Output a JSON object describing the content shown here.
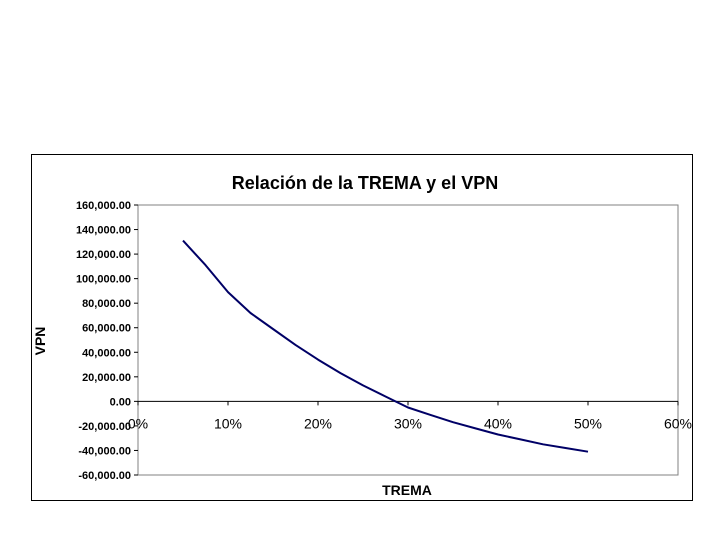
{
  "chart_data": {
    "type": "line",
    "title": "Relación de la TREMA y el VPN",
    "xlabel": "TREMA",
    "ylabel": "VPN",
    "xlim": [
      0,
      0.6
    ],
    "ylim": [
      -60000,
      160000
    ],
    "x_ticks": [
      "0%",
      "10%",
      "20%",
      "30%",
      "40%",
      "50%",
      "60%"
    ],
    "y_ticks": [
      "160,000.00",
      "140,000.00",
      "120,000.00",
      "100,000.00",
      "80,000.00",
      "60,000.00",
      "40,000.00",
      "20,000.00",
      "0.00",
      "-20,000.00",
      "-40,000.00",
      "-60,000.00"
    ],
    "grid": false,
    "legend": "none",
    "series": [
      {
        "color": "#000066",
        "x": [
          0.05,
          0.075,
          0.1,
          0.125,
          0.15,
          0.175,
          0.2,
          0.225,
          0.25,
          0.275,
          0.3,
          0.325,
          0.35,
          0.375,
          0.4,
          0.425,
          0.45,
          0.475,
          0.5
        ],
        "y": [
          131000,
          111000,
          89000,
          72000,
          59000,
          46000,
          34000,
          23000,
          13000,
          4000,
          -5000,
          -11000,
          -17000,
          -22000,
          -27000,
          -31000,
          -35000,
          -38000,
          -41000
        ]
      }
    ]
  }
}
